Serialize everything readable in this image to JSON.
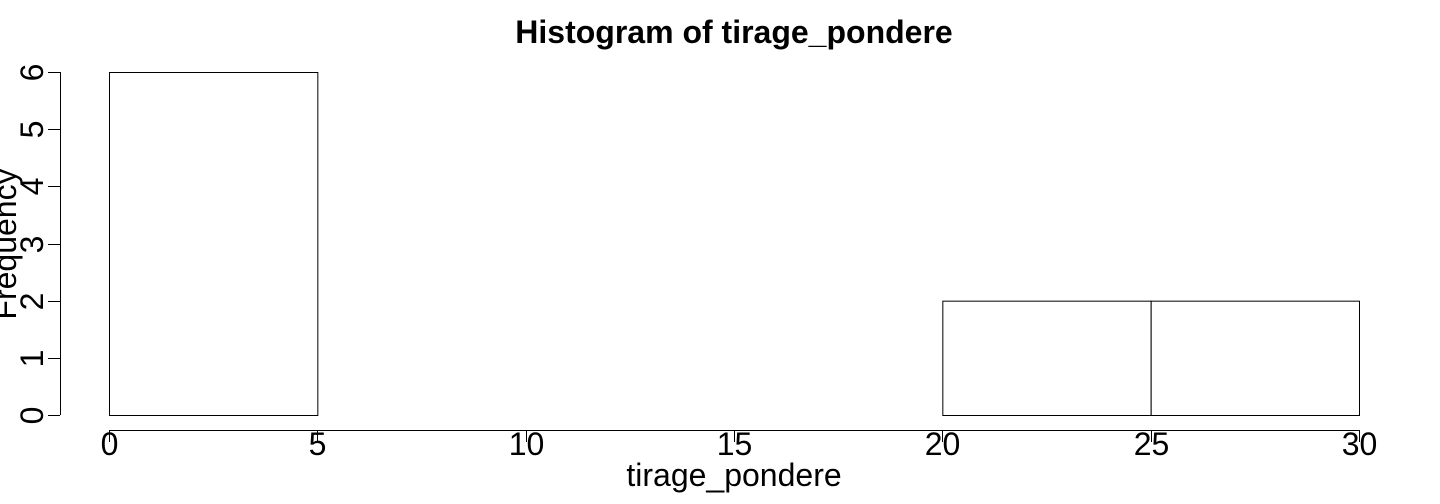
{
  "chart_data": {
    "type": "bar",
    "subtype": "histogram",
    "title": "Histogram of tirage_pondere",
    "xlabel": "tirage_pondere",
    "ylabel": "Frequency",
    "bins": [
      {
        "from": 0,
        "to": 5,
        "count": 6
      },
      {
        "from": 5,
        "to": 10,
        "count": 0
      },
      {
        "from": 10,
        "to": 15,
        "count": 0
      },
      {
        "from": 15,
        "to": 20,
        "count": 0
      },
      {
        "from": 20,
        "to": 25,
        "count": 2
      },
      {
        "from": 25,
        "to": 30,
        "count": 2
      }
    ],
    "xlim": [
      0,
      30
    ],
    "ylim": [
      0,
      6
    ],
    "x_ticks": [
      0,
      5,
      10,
      15,
      20,
      25,
      30
    ],
    "x_tick_labels": [
      "0",
      "5",
      "10",
      "15",
      "20",
      "25",
      "30"
    ],
    "y_ticks": [
      0,
      1,
      2,
      3,
      4,
      5,
      6
    ],
    "y_tick_labels": [
      "0",
      "1",
      "2",
      "3",
      "4",
      "5",
      "6"
    ],
    "bar_fill": "#ffffff",
    "bar_stroke": "#000000",
    "grid": false,
    "legend": "none"
  }
}
